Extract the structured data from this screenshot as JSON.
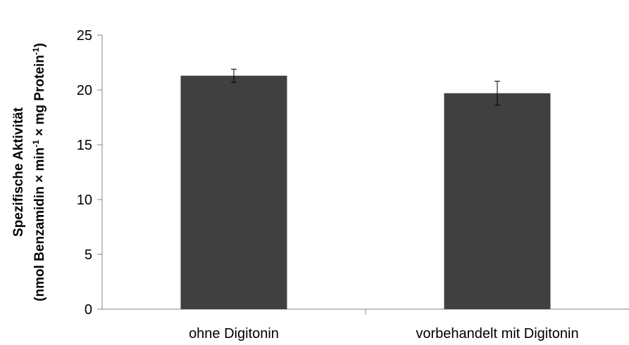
{
  "chart_data": {
    "type": "bar",
    "categories": [
      "ohne Digitonin",
      "vorbehandelt mit Digitonin"
    ],
    "values": [
      21.3,
      19.7
    ],
    "errors": [
      0.6,
      1.1
    ],
    "ylabel_line1": "Spezifische Aktivität",
    "ylabel_line2_pre": "(nmol Benzamidin × min",
    "ylabel_line2_sup1": "-1",
    "ylabel_line2_mid": " × mg Protein",
    "ylabel_line2_sup2": "-1",
    "ylabel_line2_post": ")",
    "ylim": [
      0,
      25
    ],
    "yticks": [
      "0",
      "5",
      "10",
      "15",
      "20",
      "25"
    ],
    "grid": false,
    "bar_color": "#404040"
  }
}
